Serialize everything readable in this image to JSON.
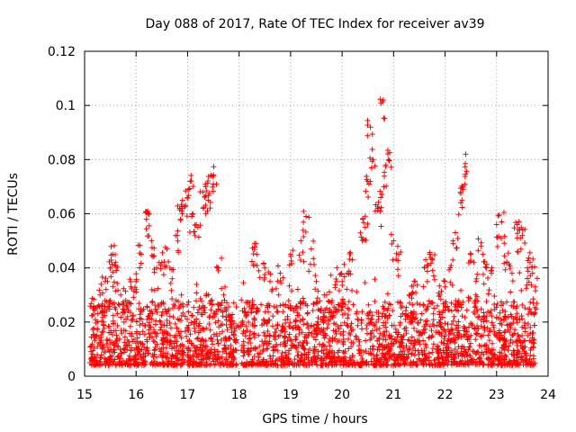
{
  "chart_data": {
    "type": "scatter",
    "title": "Day 088 of 2017, Rate Of TEC Index for receiver av39",
    "xlabel": "GPS time / hours",
    "ylabel": "ROTI / TECUs",
    "xlim": [
      15,
      24
    ],
    "ylim": [
      0,
      0.12
    ],
    "xticks": [
      "15",
      "16",
      "17",
      "18",
      "19",
      "20",
      "21",
      "22",
      "23",
      "24"
    ],
    "yticks": [
      "0",
      "0.02",
      "0.04",
      "0.06",
      "0.08",
      "0.1",
      "0.12"
    ],
    "grid": true,
    "marker": "+",
    "series_color": "#ff0000",
    "series": [
      {
        "name": "ROTI",
        "note": "dense scatter; representative sampled points (hours, TECU/min)",
        "x": [
          15.2,
          15.3,
          15.4,
          15.5,
          15.55,
          15.6,
          15.7,
          15.8,
          15.9,
          16.0,
          16.1,
          16.2,
          16.25,
          16.3,
          16.4,
          16.5,
          16.6,
          16.7,
          16.8,
          16.85,
          16.9,
          17.0,
          17.05,
          17.1,
          17.2,
          17.3,
          17.35,
          17.4,
          17.45,
          17.5,
          17.6,
          17.7,
          17.8,
          17.9,
          18.0,
          18.1,
          18.3,
          18.35,
          18.5,
          18.6,
          18.8,
          19.0,
          19.2,
          19.3,
          19.4,
          19.5,
          19.7,
          19.9,
          20.0,
          20.1,
          20.2,
          20.4,
          20.45,
          20.5,
          20.55,
          20.6,
          20.7,
          20.75,
          20.8,
          20.85,
          20.9,
          21.0,
          21.1,
          21.3,
          21.4,
          21.6,
          21.7,
          21.75,
          21.9,
          22.0,
          22.1,
          22.2,
          22.3,
          22.35,
          22.4,
          22.5,
          22.6,
          22.7,
          22.8,
          22.9,
          23.0,
          23.1,
          23.2,
          23.3,
          23.4,
          23.45,
          23.5,
          23.6,
          23.65,
          23.7,
          23.75
        ],
        "y": [
          0.025,
          0.03,
          0.035,
          0.04,
          0.045,
          0.042,
          0.03,
          0.028,
          0.033,
          0.035,
          0.045,
          0.058,
          0.06,
          0.05,
          0.04,
          0.042,
          0.047,
          0.036,
          0.052,
          0.062,
          0.065,
          0.066,
          0.072,
          0.06,
          0.055,
          0.068,
          0.07,
          0.065,
          0.074,
          0.071,
          0.04,
          0.03,
          0.022,
          0.015,
          0.018,
          0.025,
          0.049,
          0.045,
          0.04,
          0.035,
          0.038,
          0.045,
          0.05,
          0.059,
          0.047,
          0.035,
          0.03,
          0.04,
          0.035,
          0.038,
          0.043,
          0.058,
          0.055,
          0.072,
          0.092,
          0.08,
          0.062,
          0.066,
          0.102,
          0.078,
          0.08,
          0.05,
          0.045,
          0.03,
          0.035,
          0.04,
          0.045,
          0.043,
          0.03,
          0.033,
          0.04,
          0.053,
          0.068,
          0.069,
          0.082,
          0.045,
          0.035,
          0.048,
          0.04,
          0.038,
          0.056,
          0.057,
          0.042,
          0.038,
          0.056,
          0.054,
          0.052,
          0.04,
          0.042,
          0.038,
          0.033
        ]
      }
    ]
  }
}
